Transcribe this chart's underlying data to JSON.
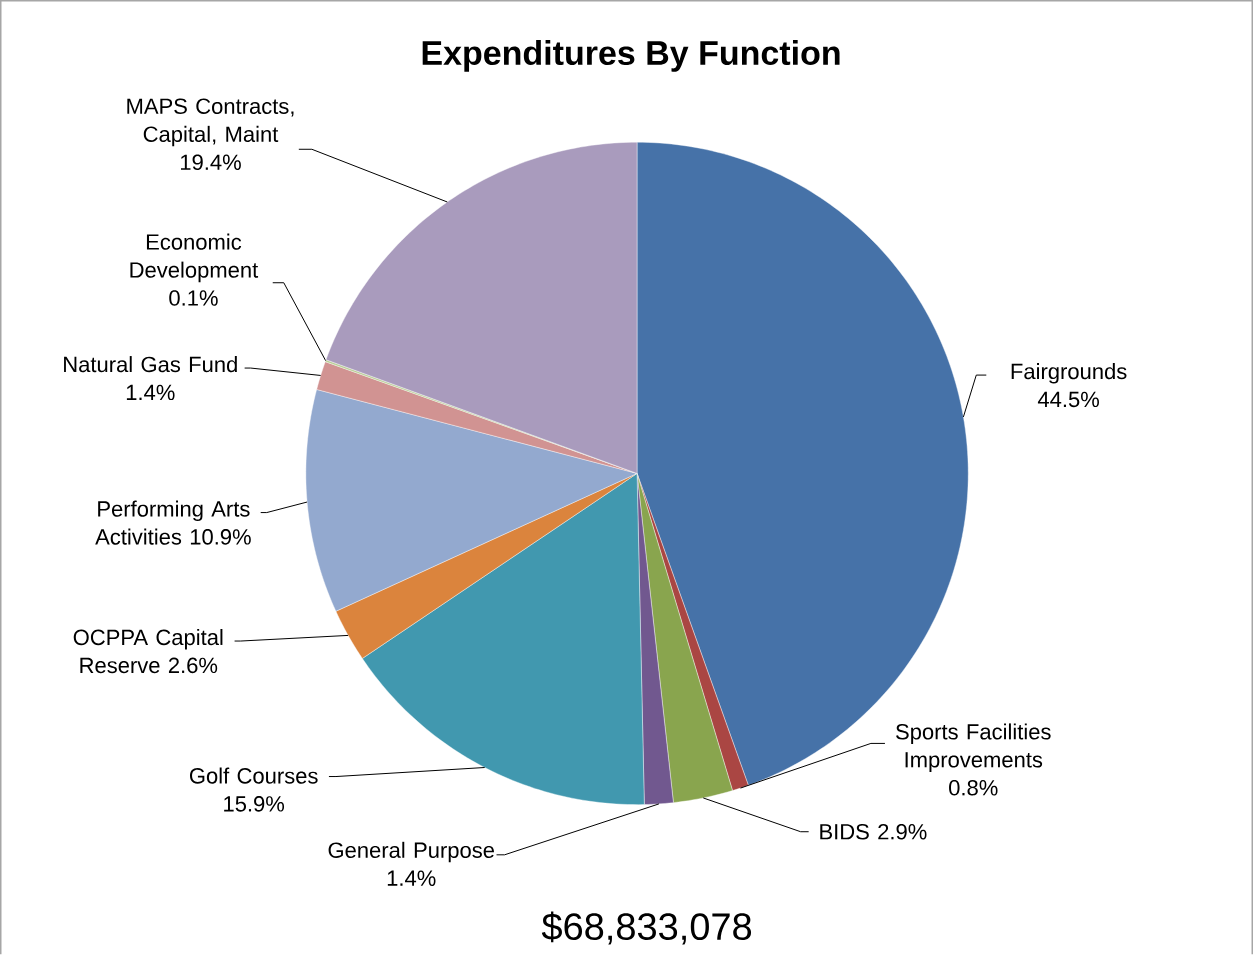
{
  "chart_data": {
    "type": "pie",
    "title": "Expenditures By Function",
    "categories": [
      "Fairgrounds",
      "Sports Facilities Improvements",
      "BIDS",
      "General Purpose",
      "Golf Courses",
      "OCPPA Capital Reserve",
      "Performing Arts Activities",
      "Natural Gas Fund",
      "Economic Development",
      "MAPS Contracts, Capital, Maint"
    ],
    "values": [
      44.5,
      0.8,
      2.9,
      1.4,
      15.9,
      2.6,
      10.9,
      1.4,
      0.1,
      19.4
    ],
    "value_labels": [
      "44.5%",
      "0.8%",
      "2.9%",
      "1.4%",
      "15.9%",
      "2.6%",
      "10.9%",
      "1.4%",
      "0.1%",
      "19.4%"
    ],
    "colors": [
      "#4672a8",
      "#aa4643",
      "#89a54e",
      "#71588f",
      "#4198af",
      "#db843d",
      "#93a9cf",
      "#d19392",
      "#b9cd96",
      "#a99bbd"
    ],
    "annotations": [
      "$68,833,078"
    ]
  }
}
